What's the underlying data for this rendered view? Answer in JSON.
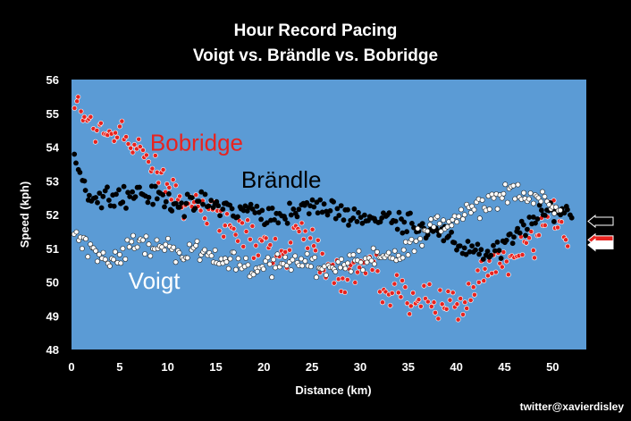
{
  "chart_data": {
    "type": "scatter",
    "title": "Hour Record Pacing",
    "subtitle": "Voigt vs. Brändle vs. Bobridge",
    "xlabel": "Distance (km)",
    "ylabel": "Speed (kph)",
    "xlim": [
      0,
      53.5
    ],
    "ylim": [
      48,
      56
    ],
    "xticks": [
      "0",
      "5",
      "10",
      "15",
      "20",
      "25",
      "30",
      "35",
      "40",
      "45",
      "50"
    ],
    "yticks": [
      "48",
      "49",
      "50",
      "51",
      "52",
      "53",
      "54",
      "55",
      "56"
    ],
    "plot_background": "#5b9bd5",
    "grid": false,
    "credit": "twitter@xavierdisley",
    "series": [
      {
        "name": "Bobridge",
        "color": "#e8231f",
        "label_color": "#e8231f",
        "anchors": [
          [
            0.3,
            55.2
          ],
          [
            1,
            55.0
          ],
          [
            2,
            54.7
          ],
          [
            3,
            54.5
          ],
          [
            4,
            54.5
          ],
          [
            5,
            54.6
          ],
          [
            6,
            54.2
          ],
          [
            7,
            53.9
          ],
          [
            8,
            53.5
          ],
          [
            9,
            53.1
          ],
          [
            10,
            52.8
          ],
          [
            11,
            52.6
          ],
          [
            12,
            52.3
          ],
          [
            13,
            52.2
          ],
          [
            14,
            52.3
          ],
          [
            15,
            52.2
          ],
          [
            16,
            51.6
          ],
          [
            17,
            51.4
          ],
          [
            18,
            51.5
          ],
          [
            19,
            51.2
          ],
          [
            20,
            51.2
          ],
          [
            21,
            50.9
          ],
          [
            22,
            50.8
          ],
          [
            23,
            51.2
          ],
          [
            24,
            51.5
          ],
          [
            25,
            51.2
          ],
          [
            26,
            50.7
          ],
          [
            27,
            50.5
          ],
          [
            28,
            50.2
          ],
          [
            29,
            50.4
          ],
          [
            30,
            50.3
          ],
          [
            31,
            50.6
          ],
          [
            32,
            50.0
          ],
          [
            33,
            49.5
          ],
          [
            34,
            49.8
          ],
          [
            35,
            49.6
          ],
          [
            36,
            49.7
          ],
          [
            37,
            49.5
          ],
          [
            38,
            49.3
          ],
          [
            39,
            49.4
          ],
          [
            40,
            49.3
          ],
          [
            41,
            49.4
          ],
          [
            42,
            49.8
          ],
          [
            43,
            50.1
          ],
          [
            44,
            50.4
          ],
          [
            45,
            50.5
          ],
          [
            46,
            50.9
          ],
          [
            47,
            51.0
          ],
          [
            48,
            51.2
          ],
          [
            49,
            51.6
          ],
          [
            50,
            52.0
          ],
          [
            51,
            51.8
          ],
          [
            51.6,
            51.2
          ]
        ],
        "count": 240,
        "noise": 0.42
      },
      {
        "name": "Brändle",
        "color": "#000000",
        "label_color": "#000000",
        "anchors": [
          [
            0.3,
            53.7
          ],
          [
            1,
            53.2
          ],
          [
            2,
            52.5
          ],
          [
            3,
            52.5
          ],
          [
            4,
            52.6
          ],
          [
            5,
            52.6
          ],
          [
            6,
            52.5
          ],
          [
            7,
            52.6
          ],
          [
            8,
            52.6
          ],
          [
            9,
            52.5
          ],
          [
            10,
            52.4
          ],
          [
            11,
            52.3
          ],
          [
            12,
            52.3
          ],
          [
            13,
            52.3
          ],
          [
            14,
            52.4
          ],
          [
            15,
            52.3
          ],
          [
            16,
            52.2
          ],
          [
            17,
            52.1
          ],
          [
            18,
            52.1
          ],
          [
            19,
            52.1
          ],
          [
            20,
            52.0
          ],
          [
            21,
            52.0
          ],
          [
            22,
            52.0
          ],
          [
            23,
            52.1
          ],
          [
            24,
            52.2
          ],
          [
            25,
            52.2
          ],
          [
            26,
            52.2
          ],
          [
            27,
            52.1
          ],
          [
            28,
            52.1
          ],
          [
            29,
            52.0
          ],
          [
            30,
            51.9
          ],
          [
            31,
            51.9
          ],
          [
            32,
            51.9
          ],
          [
            33,
            51.9
          ],
          [
            34,
            51.8
          ],
          [
            35,
            51.8
          ],
          [
            36,
            51.7
          ],
          [
            37,
            51.6
          ],
          [
            38,
            51.5
          ],
          [
            39,
            51.3
          ],
          [
            40,
            51.1
          ],
          [
            41,
            51.0
          ],
          [
            42,
            50.9
          ],
          [
            43,
            50.8
          ],
          [
            44,
            50.9
          ],
          [
            45,
            51.1
          ],
          [
            46,
            51.3
          ],
          [
            47,
            51.6
          ],
          [
            48,
            51.8
          ],
          [
            49,
            52.0
          ],
          [
            50,
            52.1
          ],
          [
            51,
            52.1
          ],
          [
            52,
            52.1
          ]
        ],
        "count": 260,
        "noise": 0.24
      },
      {
        "name": "Voigt",
        "color": "#ffffff",
        "label_color": "#ffffff",
        "anchors": [
          [
            0.3,
            51.4
          ],
          [
            1,
            51.3
          ],
          [
            2,
            51.0
          ],
          [
            3,
            50.8
          ],
          [
            4,
            50.7
          ],
          [
            5,
            50.8
          ],
          [
            6,
            51.1
          ],
          [
            7,
            51.2
          ],
          [
            8,
            51.0
          ],
          [
            9,
            51.1
          ],
          [
            10,
            51.0
          ],
          [
            11,
            50.9
          ],
          [
            12,
            50.9
          ],
          [
            13,
            50.9
          ],
          [
            14,
            50.9
          ],
          [
            15,
            50.8
          ],
          [
            16,
            50.6
          ],
          [
            17,
            50.6
          ],
          [
            18,
            50.5
          ],
          [
            19,
            50.4
          ],
          [
            20,
            50.4
          ],
          [
            21,
            50.5
          ],
          [
            22,
            50.5
          ],
          [
            23,
            50.6
          ],
          [
            24,
            50.6
          ],
          [
            25,
            50.5
          ],
          [
            26,
            50.5
          ],
          [
            27,
            50.5
          ],
          [
            28,
            50.5
          ],
          [
            29,
            50.6
          ],
          [
            30,
            50.6
          ],
          [
            31,
            50.7
          ],
          [
            32,
            50.7
          ],
          [
            33,
            50.8
          ],
          [
            34,
            50.9
          ],
          [
            35,
            51.1
          ],
          [
            36,
            51.3
          ],
          [
            37,
            51.5
          ],
          [
            38,
            51.7
          ],
          [
            39,
            51.8
          ],
          [
            40,
            51.9
          ],
          [
            41,
            52.0
          ],
          [
            42,
            52.1
          ],
          [
            43,
            52.3
          ],
          [
            44,
            52.5
          ],
          [
            45,
            52.6
          ],
          [
            46,
            52.6
          ],
          [
            47,
            52.5
          ],
          [
            48,
            52.4
          ],
          [
            49,
            52.5
          ],
          [
            50,
            52.3
          ],
          [
            50.8,
            52.1
          ]
        ],
        "count": 250,
        "noise": 0.24
      }
    ],
    "annotations": [
      {
        "text": "Bobridge",
        "x": 13.0,
        "y": 53.9,
        "color": "#e8231f"
      },
      {
        "text": "Brändle",
        "x": 21.8,
        "y": 52.8,
        "color": "#000000"
      },
      {
        "text": "Voigt",
        "x": 8.6,
        "y": 49.8,
        "color": "#ffffff"
      }
    ],
    "markers": [
      {
        "name": "Brändle",
        "color": "#000000",
        "y": 51.8
      },
      {
        "name": "Bobridge",
        "color": "#e8231f",
        "y": 51.25
      },
      {
        "name": "Voigt",
        "color": "#ffffff",
        "y": 51.1
      }
    ]
  }
}
